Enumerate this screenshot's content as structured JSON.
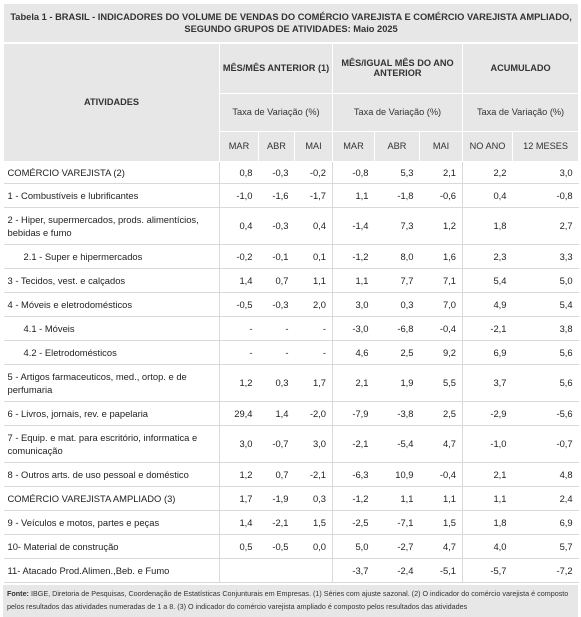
{
  "table": {
    "title_line1": "Tabela 1 - BRASIL - INDICADORES DO VOLUME DE VENDAS DO COMÉRCIO VAREJISTA E COMÉRCIO VAREJISTA AMPLIADO,",
    "title_line2": "SEGUNDO GRUPOS DE ATIVIDADES:  Maio 2025",
    "header": {
      "atividades": "ATIVIDADES",
      "group1": "MÊS/MÊS ANTERIOR (1)",
      "group2": "MÊS/IGUAL MÊS DO ANO ANTERIOR",
      "group3": "ACUMULADO",
      "tax1": "Taxa de Variação (%)",
      "tax2": "Taxa de Variação (%)",
      "tax3": "Taxa de Variação (%)",
      "cols": [
        "MAR",
        "ABR",
        "MAI",
        "MAR",
        "ABR",
        "MAI",
        "NO ANO",
        "12 MESES"
      ]
    },
    "rows": [
      {
        "label": "COMÉRCIO VAREJISTA (2)",
        "values": [
          "0,8",
          "-0,3",
          "-0,2",
          "-0,8",
          "5,3",
          "2,1",
          "2,2",
          "3,0"
        ]
      },
      {
        "label": "1 - Combustíveis e lubrificantes",
        "values": [
          "-1,0",
          "-1,6",
          "-1,7",
          "1,1",
          "-1,8",
          "-0,6",
          "0,4",
          "-0,8"
        ]
      },
      {
        "label": "2 - Hiper, supermercados, prods. alimentícios, bebidas e fumo",
        "values": [
          "0,4",
          "-0,3",
          "0,4",
          "-1,4",
          "7,3",
          "1,2",
          "1,8",
          "2,7"
        ]
      },
      {
        "label": "2.1 - Super e hipermercados",
        "values": [
          "-0,2",
          "-0,1",
          "0,1",
          "-1,2",
          "8,0",
          "1,6",
          "2,3",
          "3,3"
        ]
      },
      {
        "label": "3 - Tecidos, vest. e calçados",
        "values": [
          "1,4",
          "0,7",
          "1,1",
          "1,1",
          "7,7",
          "7,1",
          "5,4",
          "5,0"
        ]
      },
      {
        "label": "4 - Móveis e eletrodomésticos",
        "values": [
          "-0,5",
          "-0,3",
          "2,0",
          "3,0",
          "0,3",
          "7,0",
          "4,9",
          "5,4"
        ]
      },
      {
        "label": "4.1 - Móveis",
        "values": [
          "-",
          "-",
          "-",
          "-3,0",
          "-6,8",
          "-0,4",
          "-2,1",
          "3,8"
        ]
      },
      {
        "label": "4.2 - Eletrodomésticos",
        "values": [
          "-",
          "-",
          "-",
          "4,6",
          "2,5",
          "9,2",
          "6,9",
          "5,6"
        ]
      },
      {
        "label": "5 - Artigos farmaceuticos, med., ortop. e de perfumaria",
        "values": [
          "1,2",
          "0,3",
          "1,7",
          "2,1",
          "1,9",
          "5,5",
          "3,7",
          "5,6"
        ]
      },
      {
        "label": "6 - Livros, jornais, rev. e papelaria",
        "values": [
          "29,4",
          "1,4",
          "-2,0",
          "-7,9",
          "-3,8",
          "2,5",
          "-2,9",
          "-5,6"
        ]
      },
      {
        "label": "7 - Equip. e mat. para escritório, informatica e comunicação",
        "values": [
          "3,0",
          "-0,7",
          "3,0",
          "-2,1",
          "-5,4",
          "4,7",
          "-1,0",
          "-0,7"
        ]
      },
      {
        "label": "8 - Outros arts. de uso pessoal e doméstico",
        "values": [
          "1,2",
          "0,7",
          "-2,1",
          "-6,3",
          "10,9",
          "-0,4",
          "2,1",
          "4,8"
        ]
      },
      {
        "label": "COMÉRCIO VAREJISTA AMPLIADO (3)",
        "values": [
          "1,7",
          "-1,9",
          "0,3",
          "-1,2",
          "1,1",
          "1,1",
          "1,1",
          "2,4"
        ]
      },
      {
        "label": "9 - Veículos e motos, partes e peças",
        "values": [
          "1,4",
          "-2,1",
          "1,5",
          "-2,5",
          "-7,1",
          "1,5",
          "1,8",
          "6,9"
        ]
      },
      {
        "label": "10- Material de construção",
        "values": [
          "0,5",
          "-0,5",
          "0,0",
          "5,0",
          "-2,7",
          "4,7",
          "4,0",
          "5,7"
        ]
      },
      {
        "label": "11- Atacado Prod.Alimen.,Beb. e Fumo",
        "values": [
          "",
          "",
          "",
          "-3,7",
          "-2,4",
          "-5,1",
          "-5,7",
          "-7,2"
        ]
      }
    ],
    "footnote_label": "Fonte:",
    "footnote": "IBGE, Diretoria de Pesquisas, Coordenação de Estatísticas Conjunturais em Empresas. (1) Séries com ajuste sazonal. (2) O indicador do comércio varejista é composto pelos resultados das atividades numeradas de 1 a 8. (3) O indicador do comércio varejista ampliado é composto pelos resultados das atividades"
  }
}
